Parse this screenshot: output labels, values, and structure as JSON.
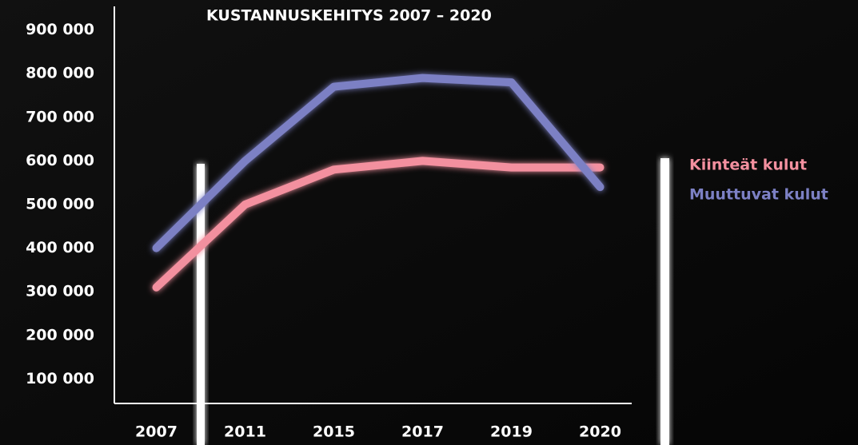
{
  "chart_data": {
    "type": "line",
    "title": "KUSTANNUSKEHITYS 2007 – 2020",
    "categories": [
      "2007",
      "2011",
      "2015",
      "2017",
      "2019",
      "2020"
    ],
    "series": [
      {
        "name": "Kiinteät kulut",
        "color": "#f3909f",
        "values": [
          310000,
          500000,
          580000,
          600000,
          585000,
          585000
        ]
      },
      {
        "name": "Muuttuvat kulut",
        "color": "#7c80c4",
        "values": [
          400000,
          600000,
          770000,
          790000,
          780000,
          540000
        ]
      }
    ],
    "ylim": [
      50000,
      950000
    ],
    "yticks": [
      {
        "value": 100000,
        "label": "100 000"
      },
      {
        "value": 200000,
        "label": "200 000"
      },
      {
        "value": 300000,
        "label": "300 000"
      },
      {
        "value": 400000,
        "label": "400 000"
      },
      {
        "value": 500000,
        "label": "500 000"
      },
      {
        "value": 600000,
        "label": "600 000"
      },
      {
        "value": 700000,
        "label": "700 000"
      },
      {
        "value": 800000,
        "label": "800 000"
      },
      {
        "value": 900000,
        "label": "900 000"
      }
    ],
    "grid": false,
    "legend": "right"
  }
}
